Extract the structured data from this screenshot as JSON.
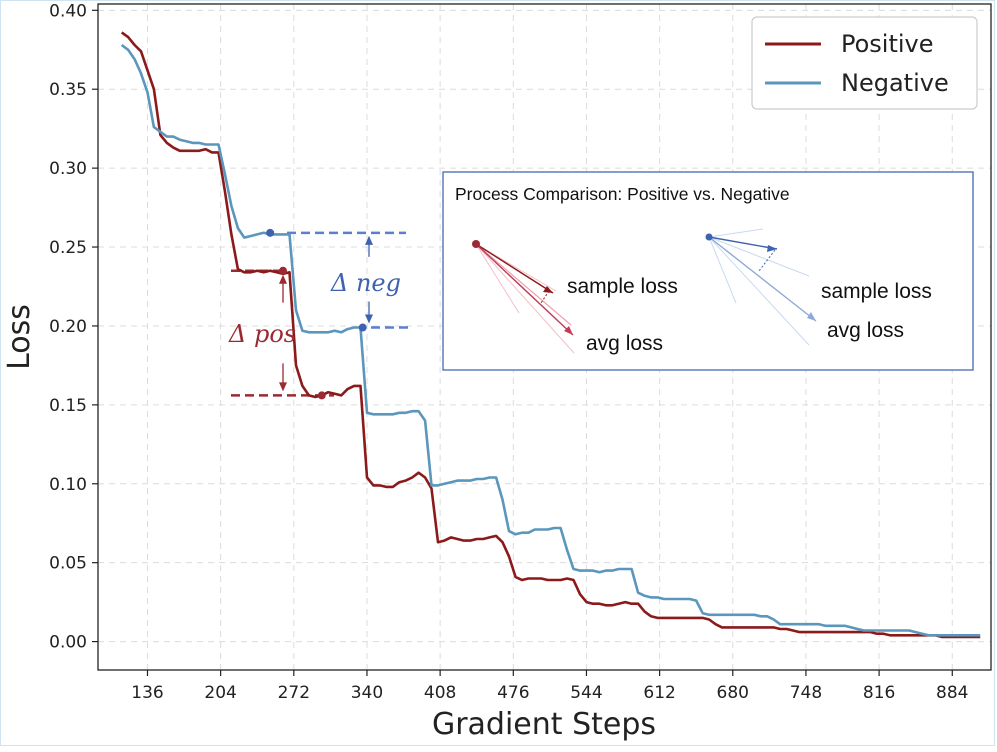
{
  "chart_data": {
    "type": "line",
    "title": "",
    "xlabel": "Gradient Steps",
    "ylabel": "Loss",
    "xlim": [
      90,
      920
    ],
    "ylim": [
      -0.018,
      0.404
    ],
    "xticks": [
      136,
      204,
      272,
      340,
      408,
      476,
      544,
      612,
      680,
      748,
      816,
      884
    ],
    "yticks": [
      0.0,
      0.05,
      0.1,
      0.15,
      0.2,
      0.25,
      0.3,
      0.35,
      0.4
    ],
    "xtick_labels": [
      "136",
      "204",
      "272",
      "340",
      "408",
      "476",
      "544",
      "612",
      "680",
      "748",
      "816",
      "884"
    ],
    "ytick_labels": [
      "0.00",
      "0.05",
      "0.10",
      "0.15",
      "0.20",
      "0.25",
      "0.30",
      "0.35",
      "0.40"
    ],
    "grid": true,
    "legend_position": "top-right",
    "series": [
      {
        "name": "Positive",
        "color": "#8b1a1a",
        "x": [
          112,
          118,
          124,
          130,
          136,
          142,
          148,
          154,
          160,
          166,
          172,
          178,
          184,
          190,
          196,
          202,
          208,
          214,
          220,
          226,
          232,
          238,
          244,
          250,
          256,
          262,
          268,
          274,
          280,
          286,
          292,
          298,
          304,
          310,
          316,
          322,
          328,
          334,
          340,
          346,
          352,
          358,
          364,
          370,
          376,
          382,
          388,
          394,
          400,
          406,
          412,
          418,
          424,
          430,
          436,
          442,
          448,
          454,
          460,
          466,
          472,
          478,
          484,
          490,
          496,
          502,
          508,
          514,
          520,
          526,
          532,
          538,
          544,
          550,
          556,
          562,
          568,
          574,
          580,
          586,
          592,
          598,
          604,
          610,
          616,
          622,
          628,
          634,
          640,
          646,
          652,
          658,
          664,
          670,
          676,
          682,
          688,
          694,
          700,
          706,
          712,
          718,
          724,
          730,
          736,
          742,
          748,
          754,
          760,
          766,
          772,
          778,
          784,
          790,
          796,
          802,
          808,
          814,
          820,
          826,
          832,
          838,
          844,
          850,
          856,
          862,
          868,
          874,
          880,
          886,
          892,
          898,
          904,
          910
        ],
        "y": [
          0.386,
          0.383,
          0.378,
          0.374,
          0.362,
          0.35,
          0.321,
          0.316,
          0.313,
          0.311,
          0.311,
          0.311,
          0.311,
          0.312,
          0.31,
          0.31,
          0.285,
          0.258,
          0.236,
          0.234,
          0.234,
          0.235,
          0.234,
          0.235,
          0.234,
          0.233,
          0.234,
          0.175,
          0.162,
          0.156,
          0.155,
          0.156,
          0.158,
          0.157,
          0.156,
          0.16,
          0.162,
          0.162,
          0.104,
          0.099,
          0.099,
          0.098,
          0.098,
          0.101,
          0.102,
          0.104,
          0.107,
          0.104,
          0.097,
          0.063,
          0.064,
          0.066,
          0.065,
          0.064,
          0.064,
          0.065,
          0.065,
          0.066,
          0.067,
          0.063,
          0.054,
          0.041,
          0.039,
          0.04,
          0.04,
          0.04,
          0.039,
          0.039,
          0.039,
          0.04,
          0.039,
          0.03,
          0.025,
          0.024,
          0.024,
          0.023,
          0.023,
          0.024,
          0.025,
          0.024,
          0.024,
          0.019,
          0.016,
          0.015,
          0.015,
          0.015,
          0.015,
          0.015,
          0.015,
          0.015,
          0.015,
          0.014,
          0.011,
          0.009,
          0.009,
          0.009,
          0.009,
          0.009,
          0.009,
          0.009,
          0.009,
          0.009,
          0.008,
          0.008,
          0.007,
          0.006,
          0.006,
          0.006,
          0.006,
          0.006,
          0.006,
          0.006,
          0.006,
          0.006,
          0.006,
          0.006,
          0.006,
          0.005,
          0.005,
          0.004,
          0.004,
          0.004,
          0.004,
          0.004,
          0.004,
          0.004,
          0.004,
          0.003,
          0.003,
          0.003,
          0.003,
          0.003,
          0.003,
          0.003
        ],
        "marker": {
          "x": 298,
          "y": 0.156
        }
      },
      {
        "name": "Negative",
        "color": "#5b96bd",
        "x": [
          112,
          118,
          124,
          130,
          136,
          142,
          148,
          154,
          160,
          166,
          172,
          178,
          184,
          190,
          196,
          202,
          208,
          214,
          220,
          226,
          232,
          238,
          244,
          250,
          256,
          262,
          268,
          274,
          280,
          286,
          292,
          298,
          304,
          310,
          316,
          322,
          328,
          334,
          340,
          346,
          352,
          358,
          364,
          370,
          376,
          382,
          388,
          394,
          400,
          406,
          412,
          418,
          424,
          430,
          436,
          442,
          448,
          454,
          460,
          466,
          472,
          478,
          484,
          490,
          496,
          502,
          508,
          514,
          520,
          526,
          532,
          538,
          544,
          550,
          556,
          562,
          568,
          574,
          580,
          586,
          592,
          598,
          604,
          610,
          616,
          622,
          628,
          634,
          640,
          646,
          652,
          658,
          664,
          670,
          676,
          682,
          688,
          694,
          700,
          706,
          712,
          718,
          724,
          730,
          736,
          742,
          748,
          754,
          760,
          766,
          772,
          778,
          784,
          790,
          796,
          802,
          808,
          814,
          820,
          826,
          832,
          838,
          844,
          850,
          856,
          862,
          868,
          874,
          880,
          886,
          892,
          898,
          904,
          910
        ],
        "y": [
          0.378,
          0.375,
          0.369,
          0.36,
          0.348,
          0.326,
          0.323,
          0.32,
          0.32,
          0.318,
          0.317,
          0.316,
          0.316,
          0.315,
          0.315,
          0.315,
          0.296,
          0.276,
          0.262,
          0.256,
          0.257,
          0.258,
          0.259,
          0.258,
          0.258,
          0.258,
          0.258,
          0.21,
          0.197,
          0.196,
          0.196,
          0.196,
          0.196,
          0.197,
          0.196,
          0.198,
          0.199,
          0.199,
          0.145,
          0.144,
          0.144,
          0.144,
          0.144,
          0.145,
          0.145,
          0.146,
          0.146,
          0.14,
          0.099,
          0.099,
          0.1,
          0.101,
          0.102,
          0.102,
          0.102,
          0.103,
          0.103,
          0.104,
          0.104,
          0.09,
          0.07,
          0.068,
          0.069,
          0.069,
          0.071,
          0.071,
          0.071,
          0.072,
          0.072,
          0.058,
          0.046,
          0.045,
          0.045,
          0.045,
          0.044,
          0.045,
          0.045,
          0.046,
          0.046,
          0.046,
          0.031,
          0.029,
          0.028,
          0.028,
          0.027,
          0.027,
          0.027,
          0.027,
          0.027,
          0.026,
          0.018,
          0.017,
          0.017,
          0.017,
          0.017,
          0.017,
          0.017,
          0.017,
          0.017,
          0.016,
          0.016,
          0.014,
          0.011,
          0.011,
          0.011,
          0.011,
          0.011,
          0.011,
          0.011,
          0.01,
          0.01,
          0.01,
          0.01,
          0.009,
          0.008,
          0.007,
          0.007,
          0.007,
          0.007,
          0.007,
          0.007,
          0.007,
          0.007,
          0.006,
          0.005,
          0.004,
          0.004,
          0.004,
          0.004,
          0.004,
          0.004,
          0.004,
          0.004,
          0.004
        ],
        "markers": [
          {
            "x": 250,
            "y": 0.259
          },
          {
            "x": 336,
            "y": 0.199
          }
        ]
      }
    ],
    "annotations": {
      "delta_pos": {
        "text": "Δ pos",
        "color": "#9b2a33",
        "y_top": 0.235,
        "y_bottom": 0.156
      },
      "delta_neg": {
        "text": "Δ neg",
        "color": "#3e62b0",
        "y_top": 0.259,
        "y_bottom": 0.199
      }
    },
    "inset": {
      "title": "Process Comparison: Positive vs. Negative",
      "labels": [
        "sample loss",
        "avg loss",
        "sample loss",
        "avg loss"
      ]
    }
  }
}
